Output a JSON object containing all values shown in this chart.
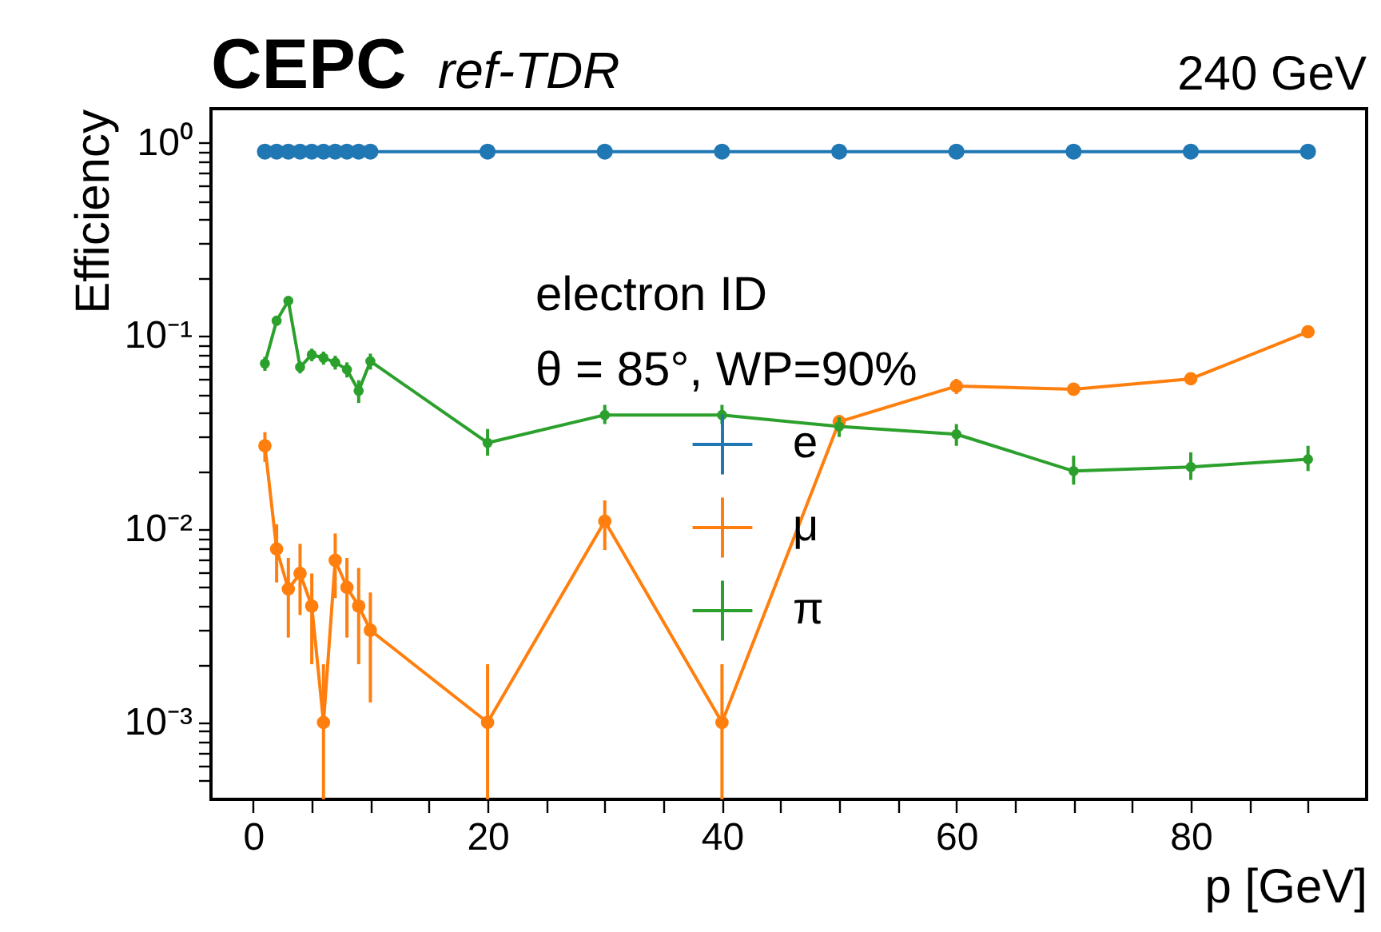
{
  "chart_data": {
    "type": "line",
    "title": "CEPC",
    "subtitle": "ref-TDR",
    "xlabel": "p [GeV]",
    "ylabel": "Efficiency",
    "annotations": [
      "240 GeV",
      "electron ID",
      "θ = 85°, WP=90%"
    ],
    "log": "y",
    "grid": false,
    "legend": "center",
    "marker": "circle",
    "line_style": "solid",
    "xlim": [
      -3.6,
      95
    ],
    "ylim": [
      0.0004,
      1.5
    ],
    "xticks": [
      0,
      {
        "value": 5,
        "label": null
      },
      {
        "value": 10,
        "label": null
      },
      {
        "value": 15,
        "label": null
      },
      20,
      {
        "value": 25,
        "label": null
      },
      {
        "value": 30,
        "label": null
      },
      {
        "value": 35,
        "label": null
      },
      40,
      {
        "value": 45,
        "label": null
      },
      {
        "value": 50,
        "label": null
      },
      {
        "value": 55,
        "label": null
      },
      60,
      {
        "value": 65,
        "label": null
      },
      {
        "value": 70,
        "label": null
      },
      {
        "value": 75,
        "label": null
      },
      80,
      {
        "value": 85,
        "label": null
      },
      {
        "value": 90,
        "label": null
      }
    ],
    "yticks": [
      {
        "value": 0.0005,
        "label": null
      },
      {
        "value": 0.0006,
        "label": null
      },
      {
        "value": 0.0007,
        "label": null
      },
      {
        "value": 0.0008,
        "label": null
      },
      {
        "value": 0.0009,
        "label": null
      },
      {
        "value": 0.001,
        "label": "10⁻³"
      },
      {
        "value": 0.002,
        "label": null
      },
      {
        "value": 0.003,
        "label": null
      },
      {
        "value": 0.004,
        "label": null
      },
      {
        "value": 0.005,
        "label": null
      },
      {
        "value": 0.006,
        "label": null
      },
      {
        "value": 0.007,
        "label": null
      },
      {
        "value": 0.008,
        "label": null
      },
      {
        "value": 0.009,
        "label": null
      },
      {
        "value": 0.01,
        "label": "10⁻²"
      },
      {
        "value": 0.02,
        "label": null
      },
      {
        "value": 0.03,
        "label": null
      },
      {
        "value": 0.04,
        "label": null
      },
      {
        "value": 0.05,
        "label": null
      },
      {
        "value": 0.06,
        "label": null
      },
      {
        "value": 0.07,
        "label": null
      },
      {
        "value": 0.08,
        "label": null
      },
      {
        "value": 0.09,
        "label": null
      },
      {
        "value": 0.1,
        "label": "10⁻¹"
      },
      {
        "value": 0.2,
        "label": null
      },
      {
        "value": 0.3,
        "label": null
      },
      {
        "value": 0.4,
        "label": null
      },
      {
        "value": 0.5,
        "label": null
      },
      {
        "value": 0.6,
        "label": null
      },
      {
        "value": 0.7,
        "label": null
      },
      {
        "value": 0.8,
        "label": null
      },
      {
        "value": 0.9,
        "label": null
      },
      {
        "value": 1,
        "label": "10⁰"
      }
    ],
    "x": [
      1,
      2,
      3,
      4,
      5,
      6,
      7,
      8,
      9,
      10,
      20,
      30,
      40,
      50,
      60,
      70,
      80,
      90
    ],
    "series": [
      {
        "name": "e",
        "color": "#1f77b4",
        "values": [
          0.9,
          0.9,
          0.9,
          0.9,
          0.9,
          0.9,
          0.9,
          0.9,
          0.9,
          0.9,
          0.9,
          0.9,
          0.9,
          0.9,
          0.9,
          0.9,
          0.9,
          0.9
        ]
      },
      {
        "name": "μ",
        "color": "#ff7f0e",
        "values": [
          0.027,
          0.0079,
          0.0049,
          0.0059,
          0.004,
          0.001,
          0.0069,
          0.005,
          0.004,
          0.003,
          0.001,
          0.011,
          0.001,
          0.036,
          0.055,
          0.053,
          0.06,
          0.105
        ],
        "errors": [
          [
            0.0223,
            0.0318
          ],
          [
            0.0053,
            0.0106
          ],
          [
            0.00275,
            0.0071
          ],
          [
            0.0036,
            0.0084
          ],
          [
            0.002,
            0.0059
          ],
          [
            0.0004,
            0.002
          ],
          [
            0.0044,
            0.0095
          ],
          [
            0.00275,
            0.0071
          ],
          [
            0.002,
            0.0063
          ],
          [
            0.00127,
            0.0047
          ],
          [
            0.0004,
            0.002
          ],
          [
            0.0078,
            0.0141
          ],
          [
            0.0004,
            0.002
          ],
          [
            0.033,
            0.039
          ],
          [
            0.05,
            0.06
          ],
          [
            0.049,
            0.057
          ],
          [
            0.056,
            0.064
          ],
          [
            0.1,
            0.11
          ]
        ]
      },
      {
        "name": "π",
        "color": "#2ca02c",
        "values": [
          0.072,
          0.12,
          0.152,
          0.069,
          0.08,
          0.077,
          0.073,
          0.067,
          0.052,
          0.074,
          0.028,
          0.039,
          0.039,
          0.034,
          0.031,
          0.02,
          0.021,
          0.023
        ],
        "errors": [
          [
            0.066,
            0.078
          ],
          [
            0.113,
            0.127
          ],
          [
            0.144,
            0.16
          ],
          [
            0.064,
            0.074
          ],
          [
            0.074,
            0.086
          ],
          [
            0.071,
            0.083
          ],
          [
            0.067,
            0.079
          ],
          [
            0.061,
            0.073
          ],
          [
            0.045,
            0.059
          ],
          [
            0.067,
            0.081
          ],
          [
            0.024,
            0.033
          ],
          [
            0.035,
            0.044
          ],
          [
            0.035,
            0.044
          ],
          [
            0.03,
            0.038
          ],
          [
            0.027,
            0.035
          ],
          [
            0.017,
            0.024
          ],
          [
            0.018,
            0.025
          ],
          [
            0.02,
            0.027
          ]
        ]
      }
    ]
  }
}
